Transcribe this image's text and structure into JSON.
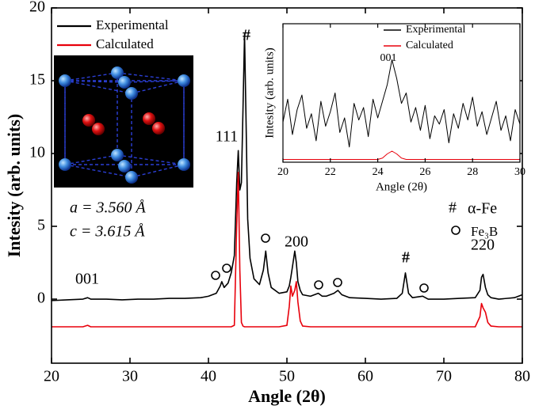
{
  "chart_data": [
    {
      "type": "line",
      "xlabel": "Angle (2θ)",
      "ylabel": "Intesity (arb. units)",
      "xlim": [
        20,
        80
      ],
      "ylim": [
        -4.4,
        20
      ],
      "xticks": [
        20,
        30,
        40,
        50,
        60,
        70,
        80
      ],
      "yticks": [
        0,
        5,
        10,
        15,
        20
      ],
      "x": [
        20,
        22,
        24,
        24.6,
        25,
        27,
        29,
        31,
        33,
        35,
        37,
        39,
        40,
        41,
        41.5,
        41.7,
        42,
        42.5,
        42.9,
        43.3,
        43.6,
        43.8,
        44.0,
        44.2,
        44.4,
        44.6,
        44.8,
        45.0,
        45.3,
        45.8,
        46.5,
        47.0,
        47.3,
        47.6,
        48.0,
        49,
        50,
        50.3,
        50.5,
        50.7,
        51.0,
        51.2,
        51.4,
        51.7,
        52,
        53,
        54,
        54.5,
        55,
        56,
        56.5,
        57,
        58,
        60,
        62,
        64,
        64.7,
        65.1,
        65.5,
        66,
        67.3,
        68,
        70,
        72,
        74,
        74.6,
        74.8,
        75.0,
        75.3,
        75.6,
        76,
        77,
        78,
        79,
        80
      ],
      "series": [
        {
          "name": "Experimental",
          "color": "#000000",
          "values": [
            -0.1,
            -0.05,
            0,
            0.1,
            0,
            0,
            -0.05,
            0,
            0,
            0.05,
            0.05,
            0.1,
            0.2,
            0.4,
            0.9,
            1.2,
            0.8,
            1.1,
            1.8,
            3.0,
            8.0,
            10.2,
            7.5,
            8.0,
            13,
            18.2,
            12,
            5.5,
            2.8,
            1.4,
            1.0,
            2.0,
            3.3,
            1.8,
            0.8,
            0.4,
            0.5,
            0.9,
            1.5,
            2.2,
            3.3,
            2.5,
            1.2,
            0.6,
            0.3,
            0.2,
            0.4,
            0.2,
            0.2,
            0.4,
            0.6,
            0.3,
            0.1,
            0.05,
            0,
            0.05,
            0.4,
            1.8,
            0.4,
            0.1,
            0.2,
            0,
            0,
            0.05,
            0.1,
            0.6,
            1.5,
            1.7,
            0.8,
            0.3,
            0.1,
            0,
            0.05,
            0.1,
            0.3
          ]
        },
        {
          "name": "Calculated",
          "color": "#e8000b",
          "values": [
            -1.9,
            -1.9,
            -1.9,
            -1.8,
            -1.9,
            -1.9,
            -1.9,
            -1.9,
            -1.9,
            -1.9,
            -1.9,
            -1.9,
            -1.9,
            -1.9,
            -1.9,
            -1.9,
            -1.9,
            -1.9,
            -1.9,
            -1.8,
            5,
            8.7,
            2,
            -1.6,
            -1.85,
            -1.9,
            -1.9,
            -1.9,
            -1.9,
            -1.9,
            -1.9,
            -1.9,
            -1.9,
            -1.9,
            -1.9,
            -1.9,
            -1.8,
            -0.5,
            0.9,
            0.2,
            0.6,
            1.2,
            -0.2,
            -1.5,
            -1.85,
            -1.9,
            -1.9,
            -1.9,
            -1.9,
            -1.9,
            -1.9,
            -1.9,
            -1.9,
            -1.9,
            -1.9,
            -1.9,
            -1.9,
            -1.9,
            -1.9,
            -1.9,
            -1.9,
            -1.9,
            -1.9,
            -1.9,
            -1.9,
            -1.2,
            -0.3,
            -0.6,
            -0.9,
            -1.6,
            -1.85,
            -1.9,
            -1.9,
            -1.9,
            -1.9
          ]
        }
      ],
      "annotations": [
        "001",
        "111",
        "#",
        "200",
        "#",
        "220"
      ],
      "lattice": [
        "a = 3.560 Å",
        "c = 3.615 Å"
      ],
      "phase_legend": [
        {
          "symbol": "#",
          "label": "α-Fe"
        },
        {
          "label": "Fe₃B"
        }
      ]
    },
    {
      "type": "line",
      "xlabel": "Angle (2θ)",
      "ylabel": "Intesity (arb. units)",
      "xlim": [
        20,
        30
      ],
      "ylim": [
        0,
        10
      ],
      "xticks": [
        20,
        22,
        24,
        26,
        28,
        30
      ],
      "x": [
        20.0,
        20.2,
        20.4,
        20.6,
        20.8,
        21.0,
        21.2,
        21.4,
        21.6,
        21.8,
        22.0,
        22.2,
        22.4,
        22.6,
        22.8,
        23.0,
        23.2,
        23.4,
        23.6,
        23.8,
        24.0,
        24.2,
        24.4,
        24.6,
        24.8,
        25.0,
        25.2,
        25.4,
        25.6,
        25.8,
        26.0,
        26.2,
        26.4,
        26.6,
        26.8,
        27.0,
        27.2,
        27.4,
        27.6,
        27.8,
        28.0,
        28.2,
        28.4,
        28.6,
        28.8,
        29.0,
        29.2,
        29.4,
        29.6,
        29.8,
        30.0
      ],
      "series": [
        {
          "name": "Experimental",
          "color": "#000000",
          "values": [
            2.9,
            4.55,
            2.0,
            3.8,
            4.85,
            2.45,
            3.5,
            1.55,
            4.4,
            2.6,
            3.65,
            5.0,
            2.15,
            3.2,
            1.1,
            4.25,
            3.05,
            3.95,
            1.85,
            4.55,
            3.2,
            4.4,
            5.6,
            7.4,
            6.05,
            4.25,
            5.0,
            2.9,
            3.95,
            2.3,
            4.1,
            1.7,
            3.35,
            2.75,
            3.8,
            1.4,
            3.5,
            2.45,
            4.25,
            3.05,
            4.7,
            2.6,
            3.65,
            2.0,
            3.2,
            4.4,
            2.3,
            3.35,
            1.55,
            3.8,
            2.75
          ]
        },
        {
          "name": "Calculated",
          "color": "#e8000b",
          "values": [
            0.2,
            0.2,
            0.2,
            0.2,
            0.2,
            0.2,
            0.2,
            0.2,
            0.2,
            0.2,
            0.2,
            0.2,
            0.2,
            0.2,
            0.2,
            0.2,
            0.2,
            0.2,
            0.2,
            0.2,
            0.2,
            0.3,
            0.6,
            0.8,
            0.6,
            0.3,
            0.2,
            0.2,
            0.2,
            0.2,
            0.2,
            0.2,
            0.2,
            0.2,
            0.2,
            0.2,
            0.2,
            0.2,
            0.2,
            0.2,
            0.2,
            0.2,
            0.2,
            0.2,
            0.2,
            0.2,
            0.2,
            0.2,
            0.2,
            0.2,
            0.2
          ]
        }
      ],
      "annotations": [
        "001"
      ]
    }
  ]
}
